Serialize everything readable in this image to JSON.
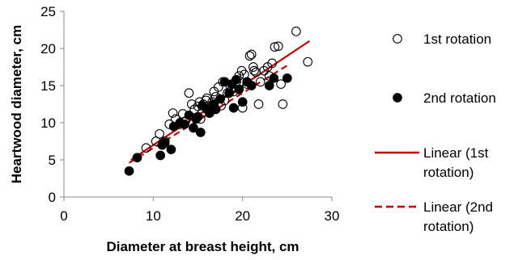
{
  "chart_data": {
    "type": "scatter",
    "xlabel": "Diameter at breast height, cm",
    "ylabel": "Heartwood diameter, cm",
    "xlim": [
      0,
      30
    ],
    "ylim": [
      0,
      25
    ],
    "xticks": [
      0,
      10,
      20,
      30
    ],
    "yticks": [
      0,
      5,
      10,
      15,
      20,
      25
    ],
    "xtick_labels": [
      "0",
      "10",
      "20",
      "30"
    ],
    "ytick_labels": [
      "0",
      "5",
      "10",
      "15",
      "20",
      "25"
    ],
    "grid": false,
    "legend_position": "right",
    "series": [
      {
        "name": "1st rotation",
        "marker": "open-circle",
        "color": "#000000",
        "points": [
          [
            9.2,
            6.6
          ],
          [
            10.3,
            7.5
          ],
          [
            10.7,
            8.5
          ],
          [
            11.3,
            7.5
          ],
          [
            11.8,
            9.8
          ],
          [
            12.2,
            11.3
          ],
          [
            12.5,
            10.5
          ],
          [
            13.0,
            9.8
          ],
          [
            13.3,
            11.2
          ],
          [
            13.6,
            10.2
          ],
          [
            14.0,
            14.0
          ],
          [
            14.3,
            12.5
          ],
          [
            14.6,
            11.8
          ],
          [
            15.0,
            12.2
          ],
          [
            15.3,
            10.5
          ],
          [
            15.6,
            12.5
          ],
          [
            15.9,
            13.0
          ],
          [
            16.3,
            11.3
          ],
          [
            16.6,
            12.8
          ],
          [
            17.0,
            13.5
          ],
          [
            17.3,
            14.8
          ],
          [
            17.6,
            12.3
          ],
          [
            18.0,
            13.0
          ],
          [
            18.3,
            14.0
          ],
          [
            18.6,
            15.0
          ],
          [
            19.0,
            14.2
          ],
          [
            19.3,
            15.5
          ],
          [
            19.6,
            16.3
          ],
          [
            19.9,
            17.0
          ],
          [
            20.2,
            16.5
          ],
          [
            20.5,
            15.2
          ],
          [
            20.8,
            19.0
          ],
          [
            21.0,
            19.2
          ],
          [
            21.2,
            17.5
          ],
          [
            21.5,
            16.8
          ],
          [
            21.8,
            12.5
          ],
          [
            22.0,
            15.5
          ],
          [
            22.4,
            17.0
          ],
          [
            22.8,
            17.5
          ],
          [
            23.0,
            16.3
          ],
          [
            23.3,
            18.0
          ],
          [
            23.6,
            20.2
          ],
          [
            24.0,
            20.3
          ],
          [
            24.3,
            15.2
          ],
          [
            24.5,
            12.5
          ],
          [
            26.0,
            22.3
          ],
          [
            27.3,
            18.2
          ],
          [
            16.0,
            13.3
          ],
          [
            18.8,
            14.5
          ],
          [
            17.8,
            15.5
          ],
          [
            15.2,
            12.8
          ],
          [
            20.0,
            12.0
          ],
          [
            21.3,
            17.0
          ],
          [
            16.8,
            14.2
          ]
        ]
      },
      {
        "name": "2nd rotation",
        "marker": "filled-circle",
        "color": "#000000",
        "points": [
          [
            7.3,
            3.5
          ],
          [
            8.2,
            5.3
          ],
          [
            10.8,
            5.6
          ],
          [
            11.0,
            7.0
          ],
          [
            11.3,
            7.3
          ],
          [
            12.0,
            6.4
          ],
          [
            12.3,
            9.5
          ],
          [
            13.0,
            10.0
          ],
          [
            13.5,
            9.8
          ],
          [
            14.0,
            11.0
          ],
          [
            14.5,
            9.3
          ],
          [
            15.0,
            10.8
          ],
          [
            15.3,
            8.7
          ],
          [
            15.5,
            12.3
          ],
          [
            16.0,
            11.8
          ],
          [
            16.3,
            11.3
          ],
          [
            16.8,
            12.5
          ],
          [
            17.0,
            11.8
          ],
          [
            17.5,
            13.2
          ],
          [
            18.0,
            15.5
          ],
          [
            18.5,
            14.0
          ],
          [
            19.0,
            12.0
          ],
          [
            19.3,
            15.8
          ],
          [
            19.6,
            14.5
          ],
          [
            20.0,
            12.8
          ],
          [
            20.5,
            15.5
          ],
          [
            21.0,
            15.0
          ],
          [
            23.0,
            15.0
          ],
          [
            23.5,
            16.0
          ],
          [
            25.0,
            16.0
          ],
          [
            18.8,
            15.2
          ],
          [
            14.8,
            10.5
          ]
        ]
      },
      {
        "name": "Linear (1st rotation)",
        "type": "line",
        "style": "solid",
        "color": "#c00000",
        "points": [
          [
            7.5,
            5.0
          ],
          [
            27.5,
            21.0
          ]
        ]
      },
      {
        "name": "Linear (2nd rotation)",
        "type": "line",
        "style": "dashed",
        "color": "#c00000",
        "points": [
          [
            7.3,
            4.6
          ],
          [
            25.0,
            17.7
          ]
        ]
      }
    ]
  },
  "legend": {
    "items": [
      {
        "lines": [
          "1st rotation"
        ],
        "symbol": "open-circle"
      },
      {
        "lines": [
          "2nd rotation"
        ],
        "symbol": "filled-circle"
      },
      {
        "lines": [
          "Linear (1st",
          "rotation)"
        ],
        "symbol": "solid-line"
      },
      {
        "lines": [
          "Linear (2nd",
          "rotation)"
        ],
        "symbol": "dashed-line"
      }
    ]
  }
}
